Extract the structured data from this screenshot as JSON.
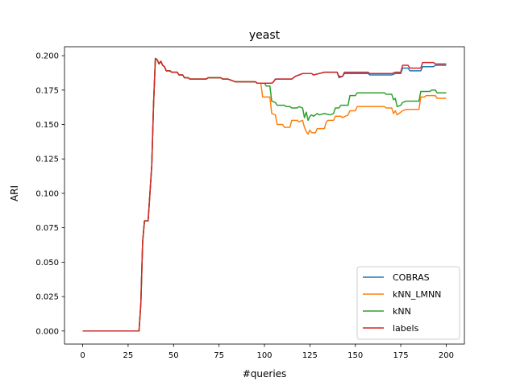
{
  "chart_data": {
    "type": "line",
    "title": "yeast",
    "xlabel": "#queries",
    "ylabel": "ARI",
    "xlim": [
      -10,
      210
    ],
    "ylim": [
      -0.0095,
      0.2065
    ],
    "x_ticks": [
      0,
      25,
      50,
      75,
      100,
      125,
      150,
      175,
      200
    ],
    "x_tick_labels": [
      "0",
      "25",
      "50",
      "75",
      "100",
      "125",
      "150",
      "175",
      "200"
    ],
    "y_ticks": [
      0.0,
      0.025,
      0.05,
      0.075,
      0.1,
      0.125,
      0.15,
      0.175,
      0.2
    ],
    "y_tick_labels": [
      "0.000",
      "0.025",
      "0.050",
      "0.075",
      "0.100",
      "0.125",
      "0.150",
      "0.175",
      "0.200"
    ],
    "grid": false,
    "legend_position": "lower-right",
    "series": [
      {
        "name": "COBRAS",
        "color": "#1f77b4",
        "points": [
          [
            0,
            0
          ],
          [
            31,
            0
          ],
          [
            32,
            0.02
          ],
          [
            33,
            0.065
          ],
          [
            34,
            0.08
          ],
          [
            36,
            0.08
          ],
          [
            37,
            0.1
          ],
          [
            38,
            0.12
          ],
          [
            39,
            0.165
          ],
          [
            40,
            0.198
          ],
          [
            41,
            0.197
          ],
          [
            42,
            0.194
          ],
          [
            43,
            0.196
          ],
          [
            44,
            0.193
          ],
          [
            45,
            0.192
          ],
          [
            46,
            0.189
          ],
          [
            48,
            0.189
          ],
          [
            49,
            0.188
          ],
          [
            52,
            0.188
          ],
          [
            53,
            0.186
          ],
          [
            55,
            0.186
          ],
          [
            56,
            0.184
          ],
          [
            58,
            0.184
          ],
          [
            59,
            0.183
          ],
          [
            62,
            0.183
          ],
          [
            63,
            0.183
          ],
          [
            68,
            0.183
          ],
          [
            69,
            0.184
          ],
          [
            76,
            0.184
          ],
          [
            77,
            0.183
          ],
          [
            80,
            0.183
          ],
          [
            82,
            0.182
          ],
          [
            84,
            0.181
          ],
          [
            95,
            0.181
          ],
          [
            96,
            0.18
          ],
          [
            104,
            0.18
          ],
          [
            105,
            0.181
          ],
          [
            106,
            0.183
          ],
          [
            115,
            0.183
          ],
          [
            117,
            0.185
          ],
          [
            119,
            0.186
          ],
          [
            121,
            0.187
          ],
          [
            126,
            0.187
          ],
          [
            127,
            0.186
          ],
          [
            130,
            0.187
          ],
          [
            133,
            0.188
          ],
          [
            140,
            0.188
          ],
          [
            141,
            0.184
          ],
          [
            143,
            0.185
          ],
          [
            144,
            0.187
          ],
          [
            157,
            0.187
          ],
          [
            158,
            0.186
          ],
          [
            170,
            0.186
          ],
          [
            172,
            0.187
          ],
          [
            175,
            0.187
          ],
          [
            176,
            0.191
          ],
          [
            179,
            0.191
          ],
          [
            180,
            0.189
          ],
          [
            186,
            0.189
          ],
          [
            187,
            0.192
          ],
          [
            193,
            0.192
          ],
          [
            194,
            0.193
          ],
          [
            200,
            0.193
          ]
        ]
      },
      {
        "name": "kNN_LMNN",
        "color": "#ff7f0e",
        "points": [
          [
            0,
            0
          ],
          [
            31,
            0
          ],
          [
            32,
            0.02
          ],
          [
            33,
            0.065
          ],
          [
            34,
            0.08
          ],
          [
            36,
            0.08
          ],
          [
            37,
            0.1
          ],
          [
            38,
            0.12
          ],
          [
            39,
            0.165
          ],
          [
            40,
            0.198
          ],
          [
            41,
            0.197
          ],
          [
            42,
            0.194
          ],
          [
            43,
            0.196
          ],
          [
            44,
            0.193
          ],
          [
            45,
            0.192
          ],
          [
            46,
            0.189
          ],
          [
            48,
            0.189
          ],
          [
            49,
            0.188
          ],
          [
            52,
            0.188
          ],
          [
            53,
            0.186
          ],
          [
            55,
            0.186
          ],
          [
            56,
            0.184
          ],
          [
            58,
            0.184
          ],
          [
            59,
            0.183
          ],
          [
            62,
            0.183
          ],
          [
            63,
            0.183
          ],
          [
            68,
            0.183
          ],
          [
            69,
            0.184
          ],
          [
            76,
            0.184
          ],
          [
            77,
            0.183
          ],
          [
            80,
            0.183
          ],
          [
            82,
            0.182
          ],
          [
            84,
            0.181
          ],
          [
            95,
            0.181
          ],
          [
            96,
            0.18
          ],
          [
            98,
            0.18
          ],
          [
            99,
            0.17
          ],
          [
            103,
            0.17
          ],
          [
            104,
            0.158
          ],
          [
            106,
            0.157
          ],
          [
            107,
            0.15
          ],
          [
            110,
            0.15
          ],
          [
            111,
            0.148
          ],
          [
            114,
            0.148
          ],
          [
            115,
            0.153
          ],
          [
            118,
            0.153
          ],
          [
            119,
            0.152
          ],
          [
            121,
            0.153
          ],
          [
            122,
            0.148
          ],
          [
            123,
            0.145
          ],
          [
            124,
            0.143
          ],
          [
            125,
            0.146
          ],
          [
            126,
            0.144
          ],
          [
            128,
            0.144
          ],
          [
            129,
            0.147
          ],
          [
            133,
            0.147
          ],
          [
            134,
            0.152
          ],
          [
            135,
            0.153
          ],
          [
            138,
            0.153
          ],
          [
            139,
            0.156
          ],
          [
            142,
            0.156
          ],
          [
            143,
            0.155
          ],
          [
            146,
            0.157
          ],
          [
            147,
            0.16
          ],
          [
            150,
            0.16
          ],
          [
            151,
            0.163
          ],
          [
            166,
            0.163
          ],
          [
            167,
            0.162
          ],
          [
            170,
            0.162
          ],
          [
            171,
            0.158
          ],
          [
            172,
            0.16
          ],
          [
            173,
            0.157
          ],
          [
            174,
            0.158
          ],
          [
            176,
            0.16
          ],
          [
            178,
            0.161
          ],
          [
            185,
            0.161
          ],
          [
            186,
            0.17
          ],
          [
            188,
            0.17
          ],
          [
            189,
            0.171
          ],
          [
            194,
            0.171
          ],
          [
            195,
            0.169
          ],
          [
            200,
            0.169
          ]
        ]
      },
      {
        "name": "kNN",
        "color": "#2ca02c",
        "points": [
          [
            0,
            0
          ],
          [
            31,
            0
          ],
          [
            32,
            0.02
          ],
          [
            33,
            0.065
          ],
          [
            34,
            0.08
          ],
          [
            36,
            0.08
          ],
          [
            37,
            0.1
          ],
          [
            38,
            0.12
          ],
          [
            39,
            0.165
          ],
          [
            40,
            0.198
          ],
          [
            41,
            0.197
          ],
          [
            42,
            0.194
          ],
          [
            43,
            0.196
          ],
          [
            44,
            0.193
          ],
          [
            45,
            0.192
          ],
          [
            46,
            0.189
          ],
          [
            48,
            0.189
          ],
          [
            49,
            0.188
          ],
          [
            52,
            0.188
          ],
          [
            53,
            0.186
          ],
          [
            55,
            0.186
          ],
          [
            56,
            0.184
          ],
          [
            58,
            0.184
          ],
          [
            59,
            0.183
          ],
          [
            62,
            0.183
          ],
          [
            63,
            0.183
          ],
          [
            68,
            0.183
          ],
          [
            69,
            0.184
          ],
          [
            76,
            0.184
          ],
          [
            77,
            0.183
          ],
          [
            80,
            0.183
          ],
          [
            82,
            0.182
          ],
          [
            84,
            0.181
          ],
          [
            95,
            0.181
          ],
          [
            96,
            0.18
          ],
          [
            100,
            0.18
          ],
          [
            101,
            0.178
          ],
          [
            103,
            0.178
          ],
          [
            104,
            0.167
          ],
          [
            106,
            0.166
          ],
          [
            107,
            0.164
          ],
          [
            111,
            0.164
          ],
          [
            112,
            0.163
          ],
          [
            114,
            0.163
          ],
          [
            115,
            0.162
          ],
          [
            118,
            0.162
          ],
          [
            119,
            0.163
          ],
          [
            121,
            0.162
          ],
          [
            122,
            0.155
          ],
          [
            123,
            0.159
          ],
          [
            124,
            0.153
          ],
          [
            125,
            0.156
          ],
          [
            126,
            0.157
          ],
          [
            127,
            0.156
          ],
          [
            129,
            0.158
          ],
          [
            130,
            0.157
          ],
          [
            133,
            0.158
          ],
          [
            136,
            0.157
          ],
          [
            138,
            0.158
          ],
          [
            139,
            0.162
          ],
          [
            141,
            0.162
          ],
          [
            142,
            0.164
          ],
          [
            146,
            0.164
          ],
          [
            147,
            0.171
          ],
          [
            150,
            0.171
          ],
          [
            151,
            0.173
          ],
          [
            166,
            0.173
          ],
          [
            167,
            0.172
          ],
          [
            170,
            0.172
          ],
          [
            171,
            0.168
          ],
          [
            172,
            0.169
          ],
          [
            173,
            0.163
          ],
          [
            175,
            0.164
          ],
          [
            176,
            0.166
          ],
          [
            178,
            0.167
          ],
          [
            185,
            0.167
          ],
          [
            186,
            0.174
          ],
          [
            191,
            0.174
          ],
          [
            192,
            0.175
          ],
          [
            194,
            0.175
          ],
          [
            195,
            0.173
          ],
          [
            200,
            0.173
          ]
        ]
      },
      {
        "name": "labels",
        "color": "#d62728",
        "points": [
          [
            0,
            0
          ],
          [
            31,
            0
          ],
          [
            32,
            0.02
          ],
          [
            33,
            0.065
          ],
          [
            34,
            0.08
          ],
          [
            36,
            0.08
          ],
          [
            37,
            0.1
          ],
          [
            38,
            0.12
          ],
          [
            39,
            0.165
          ],
          [
            40,
            0.198
          ],
          [
            41,
            0.197
          ],
          [
            42,
            0.194
          ],
          [
            43,
            0.196
          ],
          [
            44,
            0.193
          ],
          [
            45,
            0.192
          ],
          [
            46,
            0.189
          ],
          [
            48,
            0.189
          ],
          [
            49,
            0.188
          ],
          [
            52,
            0.188
          ],
          [
            53,
            0.186
          ],
          [
            55,
            0.186
          ],
          [
            56,
            0.184
          ],
          [
            58,
            0.184
          ],
          [
            59,
            0.183
          ],
          [
            62,
            0.183
          ],
          [
            63,
            0.183
          ],
          [
            68,
            0.183
          ],
          [
            69,
            0.184
          ],
          [
            76,
            0.184
          ],
          [
            77,
            0.183
          ],
          [
            80,
            0.183
          ],
          [
            82,
            0.182
          ],
          [
            84,
            0.181
          ],
          [
            95,
            0.181
          ],
          [
            96,
            0.18
          ],
          [
            104,
            0.18
          ],
          [
            105,
            0.181
          ],
          [
            106,
            0.183
          ],
          [
            115,
            0.183
          ],
          [
            117,
            0.185
          ],
          [
            119,
            0.186
          ],
          [
            121,
            0.187
          ],
          [
            126,
            0.187
          ],
          [
            127,
            0.186
          ],
          [
            130,
            0.187
          ],
          [
            133,
            0.188
          ],
          [
            140,
            0.188
          ],
          [
            141,
            0.185
          ],
          [
            143,
            0.185
          ],
          [
            144,
            0.188
          ],
          [
            157,
            0.188
          ],
          [
            158,
            0.187
          ],
          [
            170,
            0.187
          ],
          [
            172,
            0.188
          ],
          [
            175,
            0.188
          ],
          [
            176,
            0.193
          ],
          [
            179,
            0.193
          ],
          [
            180,
            0.191
          ],
          [
            186,
            0.191
          ],
          [
            187,
            0.195
          ],
          [
            193,
            0.195
          ],
          [
            194,
            0.194
          ],
          [
            200,
            0.194
          ]
        ]
      }
    ]
  }
}
